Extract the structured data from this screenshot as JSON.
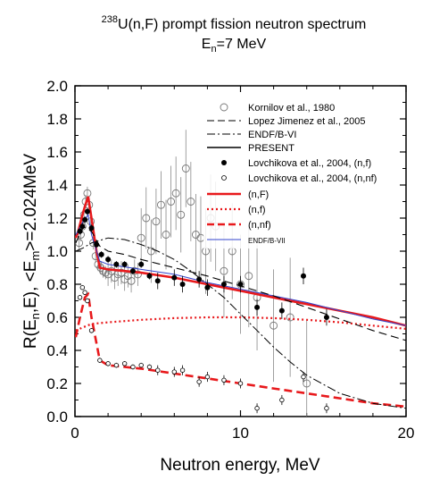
{
  "chart_data": {
    "type": "line",
    "title_line1_sup": "238",
    "title_line1": "U(n,F) prompt fission neutron spectrum",
    "title_line2_main": "E",
    "title_line2_sub": "n",
    "title_line2_rest": "=7 MeV",
    "xlabel": "Neutron energy, MeV",
    "ylabel_a": "R(E",
    "ylabel_b": "n",
    "ylabel_c": ",E), <E",
    "ylabel_d": "m",
    "ylabel_e": ">=2.024MeV",
    "xlim": [
      0,
      20
    ],
    "ylim": [
      0,
      2.0
    ],
    "x_ticks": [
      0,
      10,
      20
    ],
    "x_tick_labels": [
      "0",
      "10",
      "20"
    ],
    "y_ticks": [
      0,
      0.2,
      0.4,
      0.6,
      0.8,
      1.0,
      1.2,
      1.4,
      1.6,
      1.8,
      2.0
    ],
    "y_tick_labels": [
      "0.0",
      "0.2",
      "0.4",
      "0.6",
      "0.8",
      "1.0",
      "1.2",
      "1.4",
      "1.6",
      "1.8",
      "2.0"
    ],
    "legend": [
      {
        "label": "Kornilov et al., 1980",
        "style": "open-circle",
        "color": "#777777"
      },
      {
        "label": "Lopez Jimenez et al., 2005",
        "style": "dash",
        "color": "#000000"
      },
      {
        "label": "ENDF/B-VI",
        "style": "dashdot",
        "color": "#000000"
      },
      {
        "label": "PRESENT",
        "style": "solid",
        "color": "#000000"
      },
      {
        "label": "Lovchikova et al., 2004, (n,f)",
        "style": "filled-circle",
        "color": "#000000"
      },
      {
        "label": "Lovchikova et al., 2004, (n,nf)",
        "style": "open-circle-small",
        "color": "#000000"
      },
      {
        "label": "(n,F)",
        "style": "thick-solid",
        "color": "#e8191c"
      },
      {
        "label": "(n,f)",
        "style": "dotted",
        "color": "#e8191c"
      },
      {
        "label": "(n,nf)",
        "style": "thick-dash",
        "color": "#e8191c"
      },
      {
        "label": "ENDF/B-VII",
        "style": "thin-solid",
        "color": "#3344cc"
      }
    ],
    "series": [
      {
        "name": "(n,F)",
        "color": "#e8191c",
        "x": [
          0.05,
          0.2,
          0.4,
          0.6,
          0.8,
          1.0,
          1.3,
          1.5,
          2.0,
          4.0,
          6.0,
          8.0,
          10.0,
          12.0,
          14.0,
          16.0,
          18.0,
          20.0
        ],
        "y": [
          1.08,
          1.12,
          1.2,
          1.27,
          1.33,
          1.2,
          1.0,
          0.9,
          0.89,
          0.87,
          0.84,
          0.8,
          0.76,
          0.72,
          0.68,
          0.64,
          0.6,
          0.55
        ]
      },
      {
        "name": "(n,f)",
        "color": "#e8191c",
        "x": [
          0.05,
          0.5,
          1.0,
          2.0,
          4.0,
          6.0,
          8.0,
          10.0,
          12.0,
          14.0,
          16.0,
          18.0,
          20.0
        ],
        "y": [
          0.52,
          0.54,
          0.56,
          0.57,
          0.585,
          0.595,
          0.6,
          0.6,
          0.595,
          0.585,
          0.57,
          0.55,
          0.53
        ]
      },
      {
        "name": "(n,nf)",
        "color": "#e8191c",
        "x": [
          0.05,
          0.3,
          0.6,
          0.8,
          1.0,
          1.5,
          2.0,
          4.0,
          6.0,
          8.0,
          10.0,
          12.0,
          14.0,
          16.0,
          18.0,
          20.0
        ],
        "y": [
          0.48,
          0.6,
          0.72,
          0.74,
          0.6,
          0.34,
          0.31,
          0.29,
          0.26,
          0.23,
          0.2,
          0.17,
          0.14,
          0.11,
          0.08,
          0.06
        ]
      },
      {
        "name": "ENDF/B-VII",
        "color": "#3344cc",
        "x": [
          0.05,
          0.5,
          0.8,
          1.0,
          1.5,
          2.0,
          4.0,
          6.0,
          8.0,
          10.0,
          12.0,
          14.0,
          16.0,
          18.0,
          20.0
        ],
        "y": [
          1.1,
          1.18,
          1.22,
          1.1,
          0.94,
          0.92,
          0.89,
          0.86,
          0.81,
          0.77,
          0.73,
          0.69,
          0.64,
          0.59,
          0.55
        ]
      },
      {
        "name": "Lopez Jimenez et al., 2005",
        "color": "#000000",
        "x": [
          0.05,
          0.5,
          1.0,
          1.5,
          2.0,
          3.0,
          4.0,
          6.0,
          8.0,
          10.0,
          12.0,
          14.0,
          16.0,
          18.0,
          20.0
        ],
        "y": [
          1.05,
          1.15,
          1.12,
          1.03,
          1.0,
          0.98,
          0.95,
          0.9,
          0.85,
          0.79,
          0.73,
          0.66,
          0.59,
          0.52,
          0.46
        ]
      },
      {
        "name": "ENDF/B-VI",
        "color": "#000000",
        "x": [
          0.05,
          0.5,
          1.0,
          2.0,
          3.0,
          4.0,
          5.0,
          6.0,
          7.0,
          8.0,
          9.0,
          10.0,
          11.0,
          12.0,
          13.0,
          14.0,
          16.0,
          18.0,
          20.0
        ],
        "y": [
          1.0,
          1.02,
          1.05,
          1.08,
          1.07,
          1.04,
          1.0,
          0.95,
          0.88,
          0.8,
          0.72,
          0.62,
          0.52,
          0.42,
          0.33,
          0.25,
          0.14,
          0.08,
          0.05
        ]
      },
      {
        "name": "Lovchikova et al., 2004, (n,f)",
        "color": "#000000",
        "x": [
          0.3,
          0.45,
          0.6,
          0.75,
          1.0,
          1.3,
          1.6,
          2.0,
          2.5,
          3.0,
          3.5,
          4.0,
          4.5,
          5.0,
          6.0,
          6.5,
          7.5,
          8.0,
          9.0,
          10.0,
          11.0,
          12.5,
          13.8,
          15.2
        ],
        "y": [
          1.12,
          1.15,
          1.19,
          1.24,
          1.14,
          1.04,
          0.98,
          0.95,
          0.92,
          0.92,
          0.88,
          0.92,
          0.85,
          0.82,
          0.84,
          0.8,
          0.83,
          0.78,
          0.8,
          0.8,
          0.66,
          0.64,
          0.85,
          0.6
        ]
      },
      {
        "name": "Lovchikova et al., 2004, (n,nf)",
        "color": "#000000",
        "x": [
          0.3,
          0.45,
          0.6,
          0.75,
          1.0,
          1.5,
          2.0,
          2.5,
          3.0,
          3.5,
          4.0,
          4.5,
          5.0,
          6.0,
          6.5,
          7.5,
          8.0,
          9.0,
          10.0,
          11.0,
          12.5,
          13.8,
          15.2
        ],
        "y": [
          0.72,
          0.78,
          0.75,
          0.7,
          0.52,
          0.34,
          0.32,
          0.31,
          0.32,
          0.3,
          0.31,
          0.3,
          0.28,
          0.27,
          0.28,
          0.21,
          0.24,
          0.22,
          0.2,
          0.05,
          0.1,
          0.24,
          0.05
        ]
      },
      {
        "name": "Kornilov et al., 1980",
        "color": "#777777",
        "x": [
          0.25,
          0.35,
          0.45,
          0.55,
          0.65,
          0.75,
          0.85,
          0.95,
          1.1,
          1.25,
          1.4,
          1.55,
          1.7,
          1.85,
          2.0,
          2.2,
          2.4,
          2.6,
          2.8,
          3.0,
          3.2,
          3.4,
          3.6,
          3.8,
          4.0,
          4.3,
          4.6,
          4.9,
          5.2,
          5.5,
          5.8,
          6.1,
          6.4,
          6.7,
          7.0,
          7.3,
          7.6,
          7.9,
          8.2,
          8.5,
          9.0,
          9.5,
          10.0,
          10.5,
          11.0,
          12.0,
          13.0,
          14.0
        ],
        "y": [
          1.05,
          1.1,
          1.15,
          1.22,
          1.3,
          1.35,
          1.28,
          1.18,
          1.05,
          0.97,
          0.92,
          0.9,
          0.88,
          0.87,
          0.86,
          0.88,
          0.84,
          0.86,
          0.87,
          0.83,
          0.85,
          0.82,
          0.88,
          0.86,
          1.08,
          1.2,
          1.0,
          1.18,
          1.28,
          1.1,
          1.3,
          1.35,
          1.22,
          1.5,
          1.3,
          1.1,
          1.08,
          1.0,
          1.2,
          1.15,
          0.88,
          1.0,
          0.8,
          0.85,
          0.72,
          0.55,
          0.6,
          0.2
        ]
      }
    ]
  }
}
